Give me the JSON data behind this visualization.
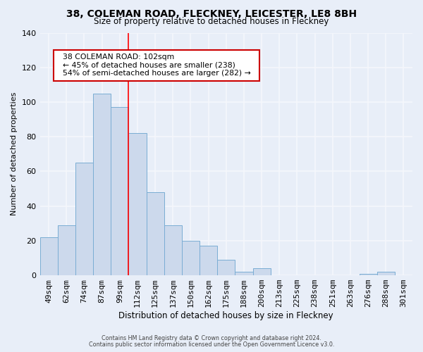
{
  "title": "38, COLEMAN ROAD, FLECKNEY, LEICESTER, LE8 8BH",
  "subtitle": "Size of property relative to detached houses in Fleckney",
  "xlabel": "Distribution of detached houses by size in Fleckney",
  "ylabel": "Number of detached properties",
  "bar_labels": [
    "49sqm",
    "62sqm",
    "74sqm",
    "87sqm",
    "99sqm",
    "112sqm",
    "125sqm",
    "137sqm",
    "150sqm",
    "162sqm",
    "175sqm",
    "188sqm",
    "200sqm",
    "213sqm",
    "225sqm",
    "238sqm",
    "251sqm",
    "263sqm",
    "276sqm",
    "288sqm",
    "301sqm"
  ],
  "bar_values": [
    22,
    29,
    65,
    105,
    97,
    82,
    48,
    29,
    20,
    17,
    9,
    2,
    4,
    0,
    0,
    0,
    0,
    0,
    1,
    2,
    0
  ],
  "bar_color": "#ccd9ec",
  "bar_edge_color": "#7aadd4",
  "background_color": "#e8eef8",
  "plot_bg_color": "#e8eef8",
  "grid_color": "#f5f7fc",
  "red_line_x": 4.5,
  "annotation_title": "38 COLEMAN ROAD: 102sqm",
  "annotation_line1": "← 45% of detached houses are smaller (238)",
  "annotation_line2": "54% of semi-detached houses are larger (282) →",
  "annotation_box_color": "#ffffff",
  "annotation_border_color": "#cc0000",
  "ylim": [
    0,
    140
  ],
  "yticks": [
    0,
    20,
    40,
    60,
    80,
    100,
    120,
    140
  ],
  "footer1": "Contains HM Land Registry data © Crown copyright and database right 2024.",
  "footer2": "Contains public sector information licensed under the Open Government Licence v3.0."
}
